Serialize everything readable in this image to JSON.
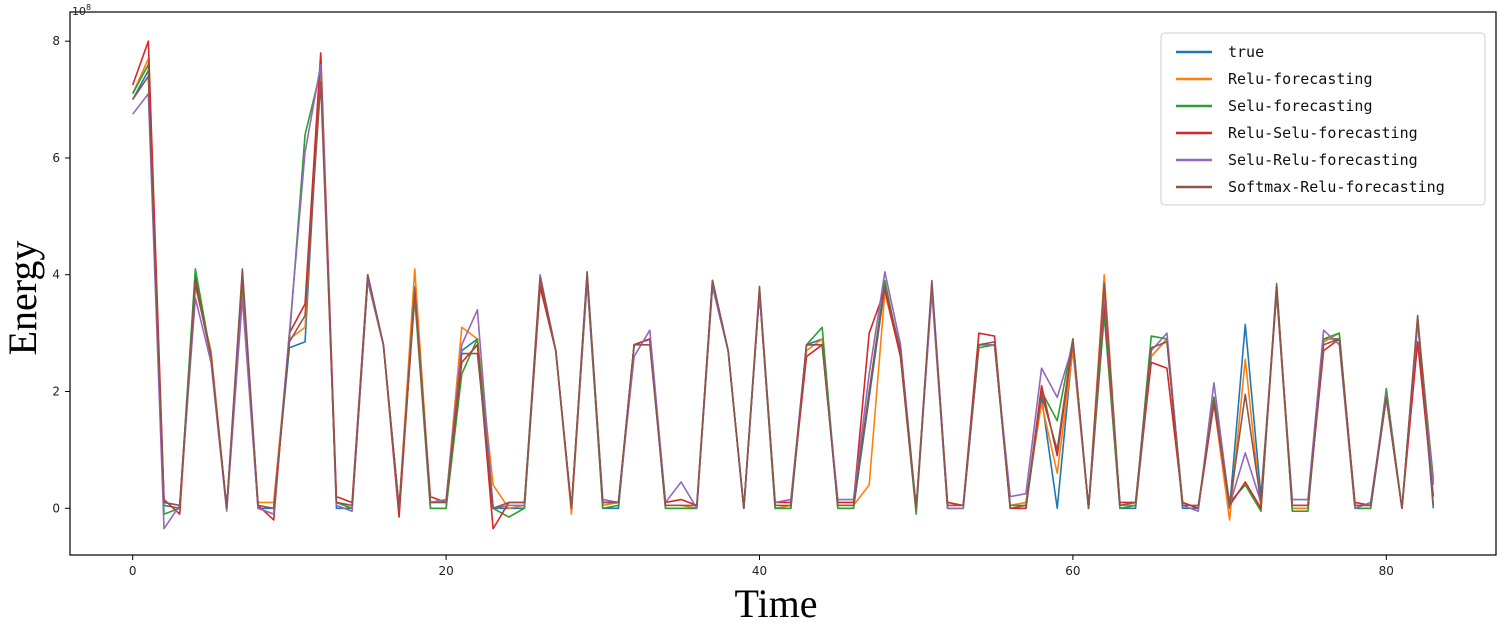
{
  "chart_data": {
    "type": "line",
    "title": "",
    "xlabel": "Time",
    "ylabel": "Energy",
    "y_multiplier": "1e8",
    "xlim": [
      -4,
      87
    ],
    "ylim": [
      -0.8,
      8.5
    ],
    "xticks": [
      0,
      20,
      40,
      60,
      80
    ],
    "yticks": [
      0,
      2,
      4,
      6,
      8
    ],
    "grid": false,
    "legend_position": "top-right",
    "x": [
      0,
      1,
      2,
      3,
      4,
      5,
      6,
      7,
      8,
      9,
      10,
      11,
      12,
      13,
      14,
      15,
      16,
      17,
      18,
      19,
      20,
      21,
      22,
      23,
      24,
      25,
      26,
      27,
      28,
      29,
      30,
      31,
      32,
      33,
      34,
      35,
      36,
      37,
      38,
      39,
      40,
      41,
      42,
      43,
      44,
      45,
      46,
      47,
      48,
      49,
      50,
      51,
      52,
      53,
      54,
      55,
      56,
      57,
      58,
      59,
      60,
      61,
      62,
      63,
      64,
      65,
      66,
      67,
      68,
      69,
      70,
      71,
      72,
      73,
      74,
      75,
      76,
      77,
      78,
      79,
      80,
      81,
      82,
      83
    ],
    "series": [
      {
        "name": "true",
        "color": "#1f77b4",
        "values": [
          7.0,
          7.5,
          0.05,
          0.0,
          4.0,
          2.6,
          0.0,
          3.8,
          0.0,
          0.0,
          2.75,
          2.85,
          7.7,
          0.0,
          0.0,
          3.9,
          2.8,
          0.0,
          3.8,
          0.0,
          0.0,
          2.7,
          2.9,
          0.0,
          0.0,
          0.0,
          3.9,
          2.7,
          0.0,
          4.0,
          0.0,
          0.0,
          2.8,
          2.9,
          0.0,
          0.0,
          0.0,
          3.9,
          2.7,
          0.0,
          3.7,
          0.0,
          0.0,
          2.8,
          2.9,
          0.0,
          0.0,
          1.9,
          3.8,
          2.6,
          0.0,
          3.8,
          0.0,
          0.0,
          2.8,
          2.8,
          0.0,
          0.0,
          1.9,
          0.0,
          2.8,
          0.0,
          3.4,
          0.0,
          0.0,
          2.6,
          2.9,
          0.0,
          0.0,
          1.9,
          0.0,
          3.15,
          0.2,
          3.7,
          0.0,
          0.0,
          2.9,
          2.9,
          0.0,
          0.0,
          1.9,
          0.0,
          3.2,
          0.0
        ]
      },
      {
        "name": "Relu-forecasting",
        "color": "#ff7f0e",
        "values": [
          7.1,
          7.7,
          0.1,
          0.05,
          3.8,
          2.7,
          0.0,
          3.7,
          0.1,
          0.1,
          2.9,
          3.1,
          7.6,
          0.1,
          0.0,
          3.9,
          2.8,
          0.0,
          4.1,
          0.1,
          0.1,
          3.1,
          2.9,
          0.4,
          0.0,
          0.05,
          3.85,
          2.7,
          -0.1,
          3.9,
          0.05,
          0.1,
          2.8,
          2.9,
          0.05,
          0.05,
          0.0,
          3.85,
          2.7,
          0.0,
          3.7,
          0.0,
          0.05,
          2.7,
          2.9,
          0.05,
          0.05,
          0.4,
          3.7,
          2.6,
          0.0,
          3.8,
          0.05,
          0.05,
          2.8,
          2.8,
          0.05,
          0.1,
          1.8,
          0.6,
          2.7,
          0.0,
          4.0,
          0.05,
          0.05,
          2.6,
          2.9,
          0.1,
          0.0,
          1.8,
          -0.2,
          2.55,
          0.0,
          3.7,
          0.0,
          0.0,
          2.85,
          3.0,
          0.05,
          0.05,
          1.9,
          0.0,
          3.25,
          0.45
        ]
      },
      {
        "name": "Selu-forecasting",
        "color": "#2ca02c",
        "values": [
          7.1,
          7.6,
          -0.1,
          0.0,
          4.1,
          2.6,
          0.0,
          3.9,
          0.0,
          -0.1,
          2.9,
          6.4,
          7.5,
          0.1,
          0.0,
          3.9,
          2.8,
          0.0,
          3.6,
          0.0,
          0.0,
          2.3,
          2.9,
          0.0,
          -0.15,
          0.0,
          3.8,
          2.7,
          0.0,
          3.9,
          0.0,
          0.05,
          2.8,
          2.9,
          0.0,
          0.0,
          0.0,
          3.8,
          2.7,
          0.0,
          3.7,
          0.0,
          0.0,
          2.8,
          3.1,
          0.0,
          0.0,
          2.0,
          3.9,
          2.6,
          -0.1,
          3.8,
          0.0,
          0.0,
          2.75,
          2.8,
          0.05,
          0.05,
          2.0,
          1.5,
          2.9,
          0.0,
          3.3,
          0.0,
          0.05,
          2.95,
          2.9,
          0.1,
          0.0,
          1.9,
          0.1,
          0.4,
          -0.05,
          3.85,
          -0.05,
          -0.05,
          2.9,
          3.0,
          0.0,
          0.0,
          2.05,
          0.0,
          3.2,
          0.5
        ]
      },
      {
        "name": "Relu-Selu-forecasting",
        "color": "#d62728",
        "values": [
          7.25,
          8.0,
          0.15,
          -0.1,
          3.9,
          2.6,
          0.0,
          4.0,
          0.05,
          -0.2,
          3.0,
          3.5,
          7.8,
          0.2,
          0.1,
          4.0,
          2.8,
          -0.15,
          3.7,
          0.2,
          0.1,
          2.5,
          2.8,
          -0.35,
          0.1,
          0.1,
          3.8,
          2.7,
          0.0,
          4.0,
          0.1,
          0.1,
          2.8,
          2.9,
          0.1,
          0.15,
          0.05,
          3.9,
          2.7,
          0.0,
          3.7,
          0.1,
          0.1,
          2.6,
          2.8,
          0.1,
          0.1,
          3.0,
          3.75,
          2.6,
          0.0,
          3.8,
          0.1,
          0.05,
          3.0,
          2.95,
          0.0,
          0.0,
          2.1,
          0.9,
          2.85,
          0.0,
          3.5,
          0.1,
          0.1,
          2.5,
          2.4,
          0.1,
          0.0,
          1.8,
          0.05,
          0.45,
          0.0,
          3.8,
          0.05,
          0.05,
          2.7,
          2.9,
          0.1,
          0.05,
          1.9,
          0.0,
          2.85,
          0.2
        ]
      },
      {
        "name": "Selu-Relu-forecasting",
        "color": "#9467bd",
        "values": [
          6.75,
          7.1,
          -0.35,
          0.05,
          3.6,
          2.5,
          -0.05,
          3.6,
          0.0,
          -0.1,
          3.0,
          6.1,
          7.6,
          0.05,
          -0.05,
          3.9,
          2.8,
          0.0,
          3.7,
          0.1,
          0.15,
          2.8,
          3.4,
          0.0,
          0.05,
          0.05,
          4.0,
          2.7,
          0.0,
          3.9,
          0.15,
          0.1,
          2.6,
          3.05,
          0.1,
          0.45,
          0.0,
          3.8,
          2.7,
          0.0,
          3.7,
          0.1,
          0.15,
          2.8,
          2.8,
          0.15,
          0.15,
          2.3,
          4.05,
          2.8,
          0.0,
          3.7,
          0.0,
          0.0,
          2.8,
          2.8,
          0.2,
          0.25,
          2.4,
          1.9,
          2.8,
          0.0,
          3.7,
          0.05,
          0.1,
          2.7,
          3.0,
          0.05,
          -0.05,
          2.15,
          0.05,
          0.95,
          0.1,
          3.7,
          0.15,
          0.15,
          3.05,
          2.8,
          0.0,
          0.1,
          1.95,
          0.0,
          3.2,
          0.4
        ]
      },
      {
        "name": "Softmax-Relu-forecasting",
        "color": "#8c564b",
        "values": [
          7.0,
          7.4,
          0.1,
          0.05,
          3.85,
          2.6,
          0.0,
          4.1,
          0.05,
          0.0,
          2.85,
          3.3,
          7.3,
          0.1,
          0.05,
          4.0,
          2.8,
          0.0,
          3.75,
          0.1,
          0.1,
          2.65,
          2.65,
          0.0,
          0.1,
          0.1,
          3.95,
          2.7,
          0.0,
          4.05,
          0.1,
          0.1,
          2.8,
          2.8,
          0.05,
          0.05,
          0.05,
          3.9,
          2.7,
          0.0,
          3.8,
          0.05,
          0.05,
          2.8,
          2.8,
          0.05,
          0.05,
          2.0,
          3.8,
          2.7,
          0.0,
          3.9,
          0.05,
          0.05,
          2.8,
          2.85,
          0.0,
          0.05,
          1.95,
          1.0,
          2.9,
          0.0,
          3.85,
          0.05,
          0.1,
          2.75,
          2.85,
          0.05,
          0.05,
          1.85,
          0.05,
          1.95,
          0.1,
          3.75,
          0.05,
          0.05,
          2.8,
          2.9,
          0.05,
          0.05,
          1.9,
          0.0,
          3.3,
          0.05
        ]
      }
    ]
  }
}
